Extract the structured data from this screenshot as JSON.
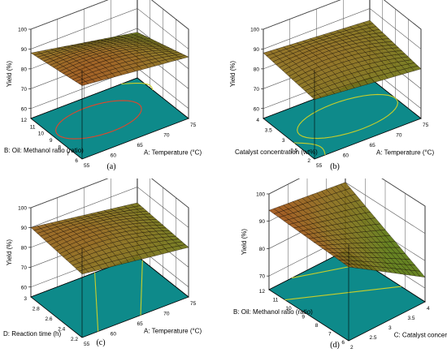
{
  "colors": {
    "surface_low": "#5a7a10",
    "surface_mid": "#8a6a18",
    "surface_high": "#c2270f",
    "mesh_dark": "#140a04",
    "contour_plane": "#0e8a8a",
    "contour_line_hot": "#e2462a",
    "contour_line_cool": "#c9cf2a",
    "wall_grid": "#555555"
  },
  "chart_data": [
    {
      "panel": "(a)",
      "type": "surface",
      "zlabel": "Yield (%)",
      "z_ticks": [
        "60",
        "70",
        "80",
        "90",
        "100"
      ],
      "zlim": [
        55,
        100
      ],
      "x_label": "A: Temperature (°C)",
      "x_ticks": [
        "55",
        "60",
        "65",
        "70",
        "75"
      ],
      "xlim": [
        55,
        75
      ],
      "y_label": "B: Oil: Methanol ratio (ratio)",
      "y_ticks": [
        "6",
        "7",
        "8",
        "9",
        "10",
        "11",
        "12"
      ],
      "ylim": [
        6,
        12
      ],
      "surface": {
        "z00": 92,
        "z10": 86,
        "z01": 88,
        "z11": 78,
        "center": 94
      },
      "contours": [
        {
          "type": "ellipse",
          "cx": 0.42,
          "cy": 0.55,
          "rx": 0.38,
          "ry": 0.28,
          "color": "hot"
        },
        {
          "type": "arc",
          "start": [
            0.85,
            1.0
          ],
          "end": [
            1.0,
            0.7
          ],
          "color": "cool"
        }
      ]
    },
    {
      "panel": "(b)",
      "type": "surface",
      "zlabel": "Yield (%)",
      "z_ticks": [
        "60",
        "70",
        "80",
        "90",
        "100"
      ],
      "zlim": [
        55,
        100
      ],
      "x_label": "A: Temperature (°C)",
      "x_ticks": [
        "55",
        "60",
        "65",
        "70",
        "75"
      ],
      "xlim": [
        55,
        75
      ],
      "y_label": "Catalyst concentration (wt%)",
      "y_ticks": [
        "2",
        "2.5",
        "3",
        "3.5",
        "4"
      ],
      "ylim": [
        2,
        4
      ],
      "surface": {
        "z00": 85,
        "z10": 80,
        "z01": 88,
        "z11": 84,
        "center": 92
      },
      "contours": [
        {
          "type": "ellipse",
          "cx": 0.55,
          "cy": 0.5,
          "rx": 0.45,
          "ry": 0.3,
          "color": "cool"
        },
        {
          "type": "arc",
          "start": [
            0.1,
            0.0
          ],
          "end": [
            0.0,
            0.4
          ],
          "color": "cool"
        }
      ]
    },
    {
      "panel": "(c)",
      "type": "surface",
      "zlabel": "Yield (%)",
      "z_ticks": [
        "60",
        "70",
        "80",
        "90",
        "100"
      ],
      "zlim": [
        55,
        100
      ],
      "x_label": "A: Temperature (°C)",
      "x_ticks": [
        "55",
        "60",
        "65",
        "70",
        "75"
      ],
      "xlim": [
        55,
        75
      ],
      "y_label": "D: Reaction time (h)",
      "y_ticks": [
        "2.2",
        "2.4",
        "2.6",
        "2.8",
        "3"
      ],
      "ylim": [
        2.2,
        3.0
      ],
      "surface": {
        "z00": 87,
        "z10": 80,
        "z01": 90,
        "z11": 82,
        "center": 93
      },
      "contours": [
        {
          "type": "line",
          "start": [
            0.15,
            0.0
          ],
          "end": [
            0.6,
            1.0
          ],
          "color": "cool"
        },
        {
          "type": "line",
          "start": [
            0.55,
            0.0
          ],
          "end": [
            1.0,
            0.9
          ],
          "color": "cool"
        }
      ]
    },
    {
      "panel": "(d)",
      "type": "surface",
      "zlabel": "Yield (%)",
      "z_ticks": [
        "70",
        "80",
        "90",
        "100"
      ],
      "zlim": [
        65,
        100
      ],
      "x_label": "C: Catalyst concentration (wt%)",
      "x_ticks": [
        "2",
        "2.5",
        "3",
        "3.5",
        "4"
      ],
      "xlim": [
        2,
        4
      ],
      "y_label": "B: Oil: Methanol ratio (ratio)",
      "y_ticks": [
        "6",
        "7",
        "8",
        "9",
        "10",
        "11",
        "12"
      ],
      "ylim": [
        6,
        12
      ],
      "surface": {
        "z00": 92,
        "z10": 74,
        "z01": 94,
        "z11": 90,
        "center": 88
      },
      "contours": [
        {
          "type": "line",
          "start": [
            0.0,
            0.8
          ],
          "end": [
            1.0,
            0.3
          ],
          "color": "cool"
        },
        {
          "type": "line",
          "start": [
            0.3,
            1.0
          ],
          "end": [
            1.0,
            0.75
          ],
          "color": "cool"
        }
      ]
    }
  ]
}
